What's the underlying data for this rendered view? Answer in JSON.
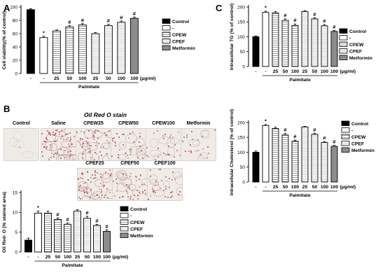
{
  "panels": {
    "a": "A",
    "b": "B",
    "c": "C"
  },
  "colors": {
    "control": "#000000",
    "vehicle": "#ffffff",
    "cpew": "#dcdcdc",
    "cpef": "#f0f0f0",
    "metformin": "#8c8c8c",
    "stain": "#b3403f"
  },
  "chart_data": [
    {
      "id": "A",
      "type": "bar",
      "ylabel": "Cell viability(% of control)",
      "ylim": [
        0,
        100
      ],
      "yticks": [
        0,
        20,
        40,
        60,
        80,
        100
      ],
      "x_tick_labels": [
        "-",
        "-",
        "25",
        "50",
        "100",
        "25",
        "50",
        "100",
        "100"
      ],
      "unit_label": "(μg/ml)",
      "group_label": "Palmitate",
      "groups": [
        "control",
        "vehicle",
        "cpew",
        "cpew",
        "cpew",
        "cpef",
        "cpef",
        "cpef",
        "metformin"
      ],
      "values": [
        96,
        54,
        64,
        70,
        73,
        60,
        72,
        77,
        83
      ],
      "errors": [
        1.5,
        2,
        1.5,
        2,
        2,
        1.5,
        2,
        2,
        2
      ],
      "annotations": [
        "",
        "*",
        "",
        "#",
        "#",
        "",
        "#",
        "#",
        "#"
      ],
      "legend": [
        "Control",
        "-",
        "CPEW",
        "CPEF",
        "Metformin"
      ],
      "legend_groups": [
        "control",
        "vehicle",
        "cpew",
        "cpef",
        "metformin"
      ]
    },
    {
      "id": "C1",
      "type": "bar",
      "ylabel": "Intracellular TG (% of control)",
      "ylim": [
        0,
        200
      ],
      "yticks": [
        0,
        50,
        100,
        150,
        200
      ],
      "x_tick_labels": [
        "-",
        "-",
        "25",
        "50",
        "100",
        "25",
        "50",
        "100",
        "100"
      ],
      "unit_label": "(μg/ml)",
      "group_label": "Palmitate",
      "groups": [
        "control",
        "vehicle",
        "cpew",
        "cpew",
        "cpew",
        "cpef",
        "cpef",
        "cpef",
        "metformin"
      ],
      "values": [
        100,
        182,
        180,
        155,
        138,
        185,
        160,
        137,
        118
      ],
      "errors": [
        3,
        4,
        5,
        5,
        5,
        3,
        4,
        4,
        3
      ],
      "annotations": [
        "",
        "*",
        "",
        "#",
        "#",
        "",
        "#",
        "#",
        "#"
      ],
      "legend": [
        "Control",
        "-",
        "CPEW",
        "CPEF",
        "Metformin"
      ],
      "legend_groups": [
        "control",
        "vehicle",
        "cpew",
        "cpef",
        "metformin"
      ]
    },
    {
      "id": "C2",
      "type": "bar",
      "ylabel": "Intracellular Cholesterol (% of control)",
      "ylim": [
        0,
        200
      ],
      "yticks": [
        0,
        50,
        100,
        150,
        200
      ],
      "x_tick_labels": [
        "-",
        "-",
        "25",
        "50",
        "100",
        "25",
        "50",
        "100",
        "100"
      ],
      "unit_label": "(μg/ml)",
      "group_label": "Palmitate",
      "groups": [
        "control",
        "vehicle",
        "cpew",
        "cpew",
        "cpew",
        "cpef",
        "cpef",
        "cpef",
        "metformin"
      ],
      "values": [
        100,
        190,
        180,
        158,
        137,
        185,
        160,
        133,
        120
      ],
      "errors": [
        4,
        3,
        4,
        5,
        4,
        2,
        4,
        3,
        3
      ],
      "annotations": [
        "",
        "*",
        "",
        "#",
        "#",
        "",
        "#",
        "#",
        "#"
      ],
      "legend": [
        "Control",
        "-",
        "CPEW",
        "CPEF",
        "Metformin"
      ],
      "legend_groups": [
        "control",
        "vehicle",
        "cpew",
        "cpef",
        "metformin"
      ]
    },
    {
      "id": "B",
      "type": "bar",
      "ylabel": "Oil Red- O (% stained area)",
      "ylim": [
        0,
        15
      ],
      "yticks": [
        0,
        5,
        10,
        15
      ],
      "x_tick_labels": [
        "-",
        "-",
        "25",
        "50",
        "100",
        "25",
        "50",
        "100",
        "100"
      ],
      "unit_label": "(μg/ml)",
      "group_label": "Palmitate",
      "groups": [
        "control",
        "vehicle",
        "cpew",
        "cpew",
        "cpew",
        "cpef",
        "cpef",
        "cpef",
        "metformin"
      ],
      "values": [
        3,
        9.8,
        9.8,
        8.2,
        7.0,
        10.3,
        8.5,
        6.7,
        5.2
      ],
      "errors": [
        0.5,
        0.5,
        0.5,
        0.4,
        0.3,
        0.4,
        0.5,
        0.3,
        0.4
      ],
      "annotations": [
        "",
        "*",
        "",
        "#",
        "#",
        "",
        "#",
        "#",
        "#"
      ],
      "legend": [
        "Control",
        "-",
        "CPEW",
        "CPEF",
        "Metformin"
      ],
      "legend_groups": [
        "control",
        "vehicle",
        "cpew",
        "cpef",
        "metformin"
      ]
    }
  ],
  "stain": {
    "title": "Oil Red O stain",
    "row1": [
      "Control",
      "Saline",
      "CPEW25",
      "CPEW50",
      "CPEW100",
      "Metformin"
    ],
    "row2": [
      "CPEF25",
      "CPEF50",
      "CPEF100"
    ],
    "row1_density": [
      0.02,
      1.0,
      0.8,
      0.5,
      0.35,
      0.3
    ],
    "row2_density": [
      0.85,
      0.6,
      0.5
    ]
  }
}
